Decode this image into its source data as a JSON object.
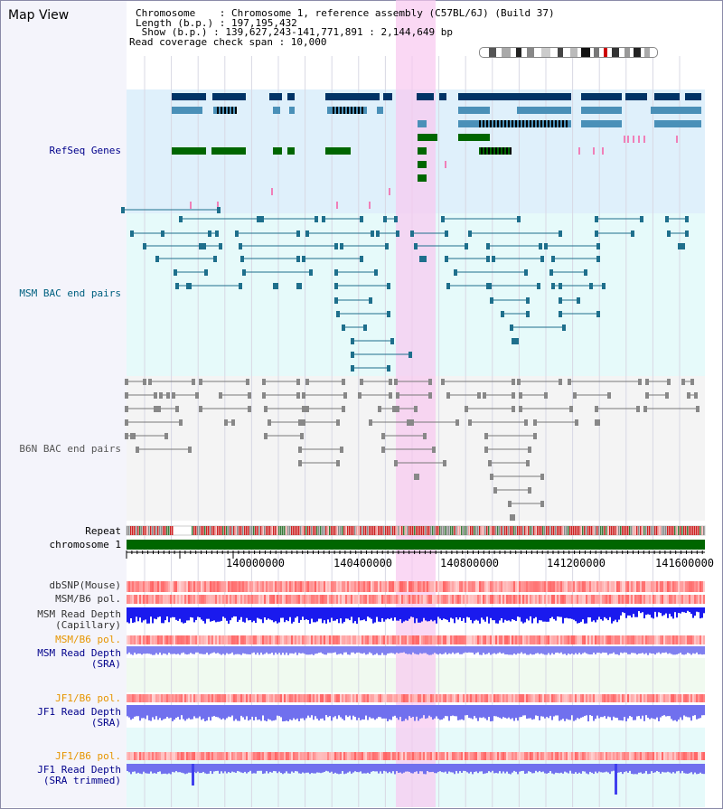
{
  "header": {
    "title": "Map View",
    "chromosome_line": "Chromosome    : Chromosome 1, reference assembly (C57BL/6J) (Build 37)",
    "length_line": "Length (b.p.) : 197,195,432",
    "show_line": " Show (b.p.) : 139,627,243-141,771,891 : 2,144,649 bp",
    "coverage_line": "Read coverage check span : 10,000"
  },
  "tracks": {
    "refseq": "RefSeq Genes",
    "msm_bac": "MSM BAC end pairs",
    "b6n_bac": "B6N BAC end pairs",
    "repeat": "Repeat",
    "chromosome": "chromosome 1",
    "dbsnp": "dbSNP(Mouse)",
    "msm_pol": "MSM/B6 pol.",
    "msm_depth_cap": "MSM Read Depth\n(Capillary)",
    "msm_pol2": "MSM/B6 pol.",
    "msm_depth_sra": "MSM Read Depth\n(SRA)",
    "jf1_pol": "JF1/B6 pol.",
    "jf1_depth_sra": "JF1 Read Depth\n(SRA)",
    "jf1_pol2": "JF1/B6 pol.",
    "jf1_depth_trim": "JF1 Read Depth\n(SRA trimmed)"
  },
  "axis": {
    "ticks": [
      "140000000",
      "140400000",
      "140800000",
      "141200000",
      "141600000"
    ]
  },
  "colors": {
    "refseq_bg": "#dff0fb",
    "msm_bg": "#e6fafa",
    "b6n_bg": "#f4f4f4",
    "highlight": "#f8c8f0",
    "label_blue": "#00008b",
    "label_orange": "#e69500"
  }
}
